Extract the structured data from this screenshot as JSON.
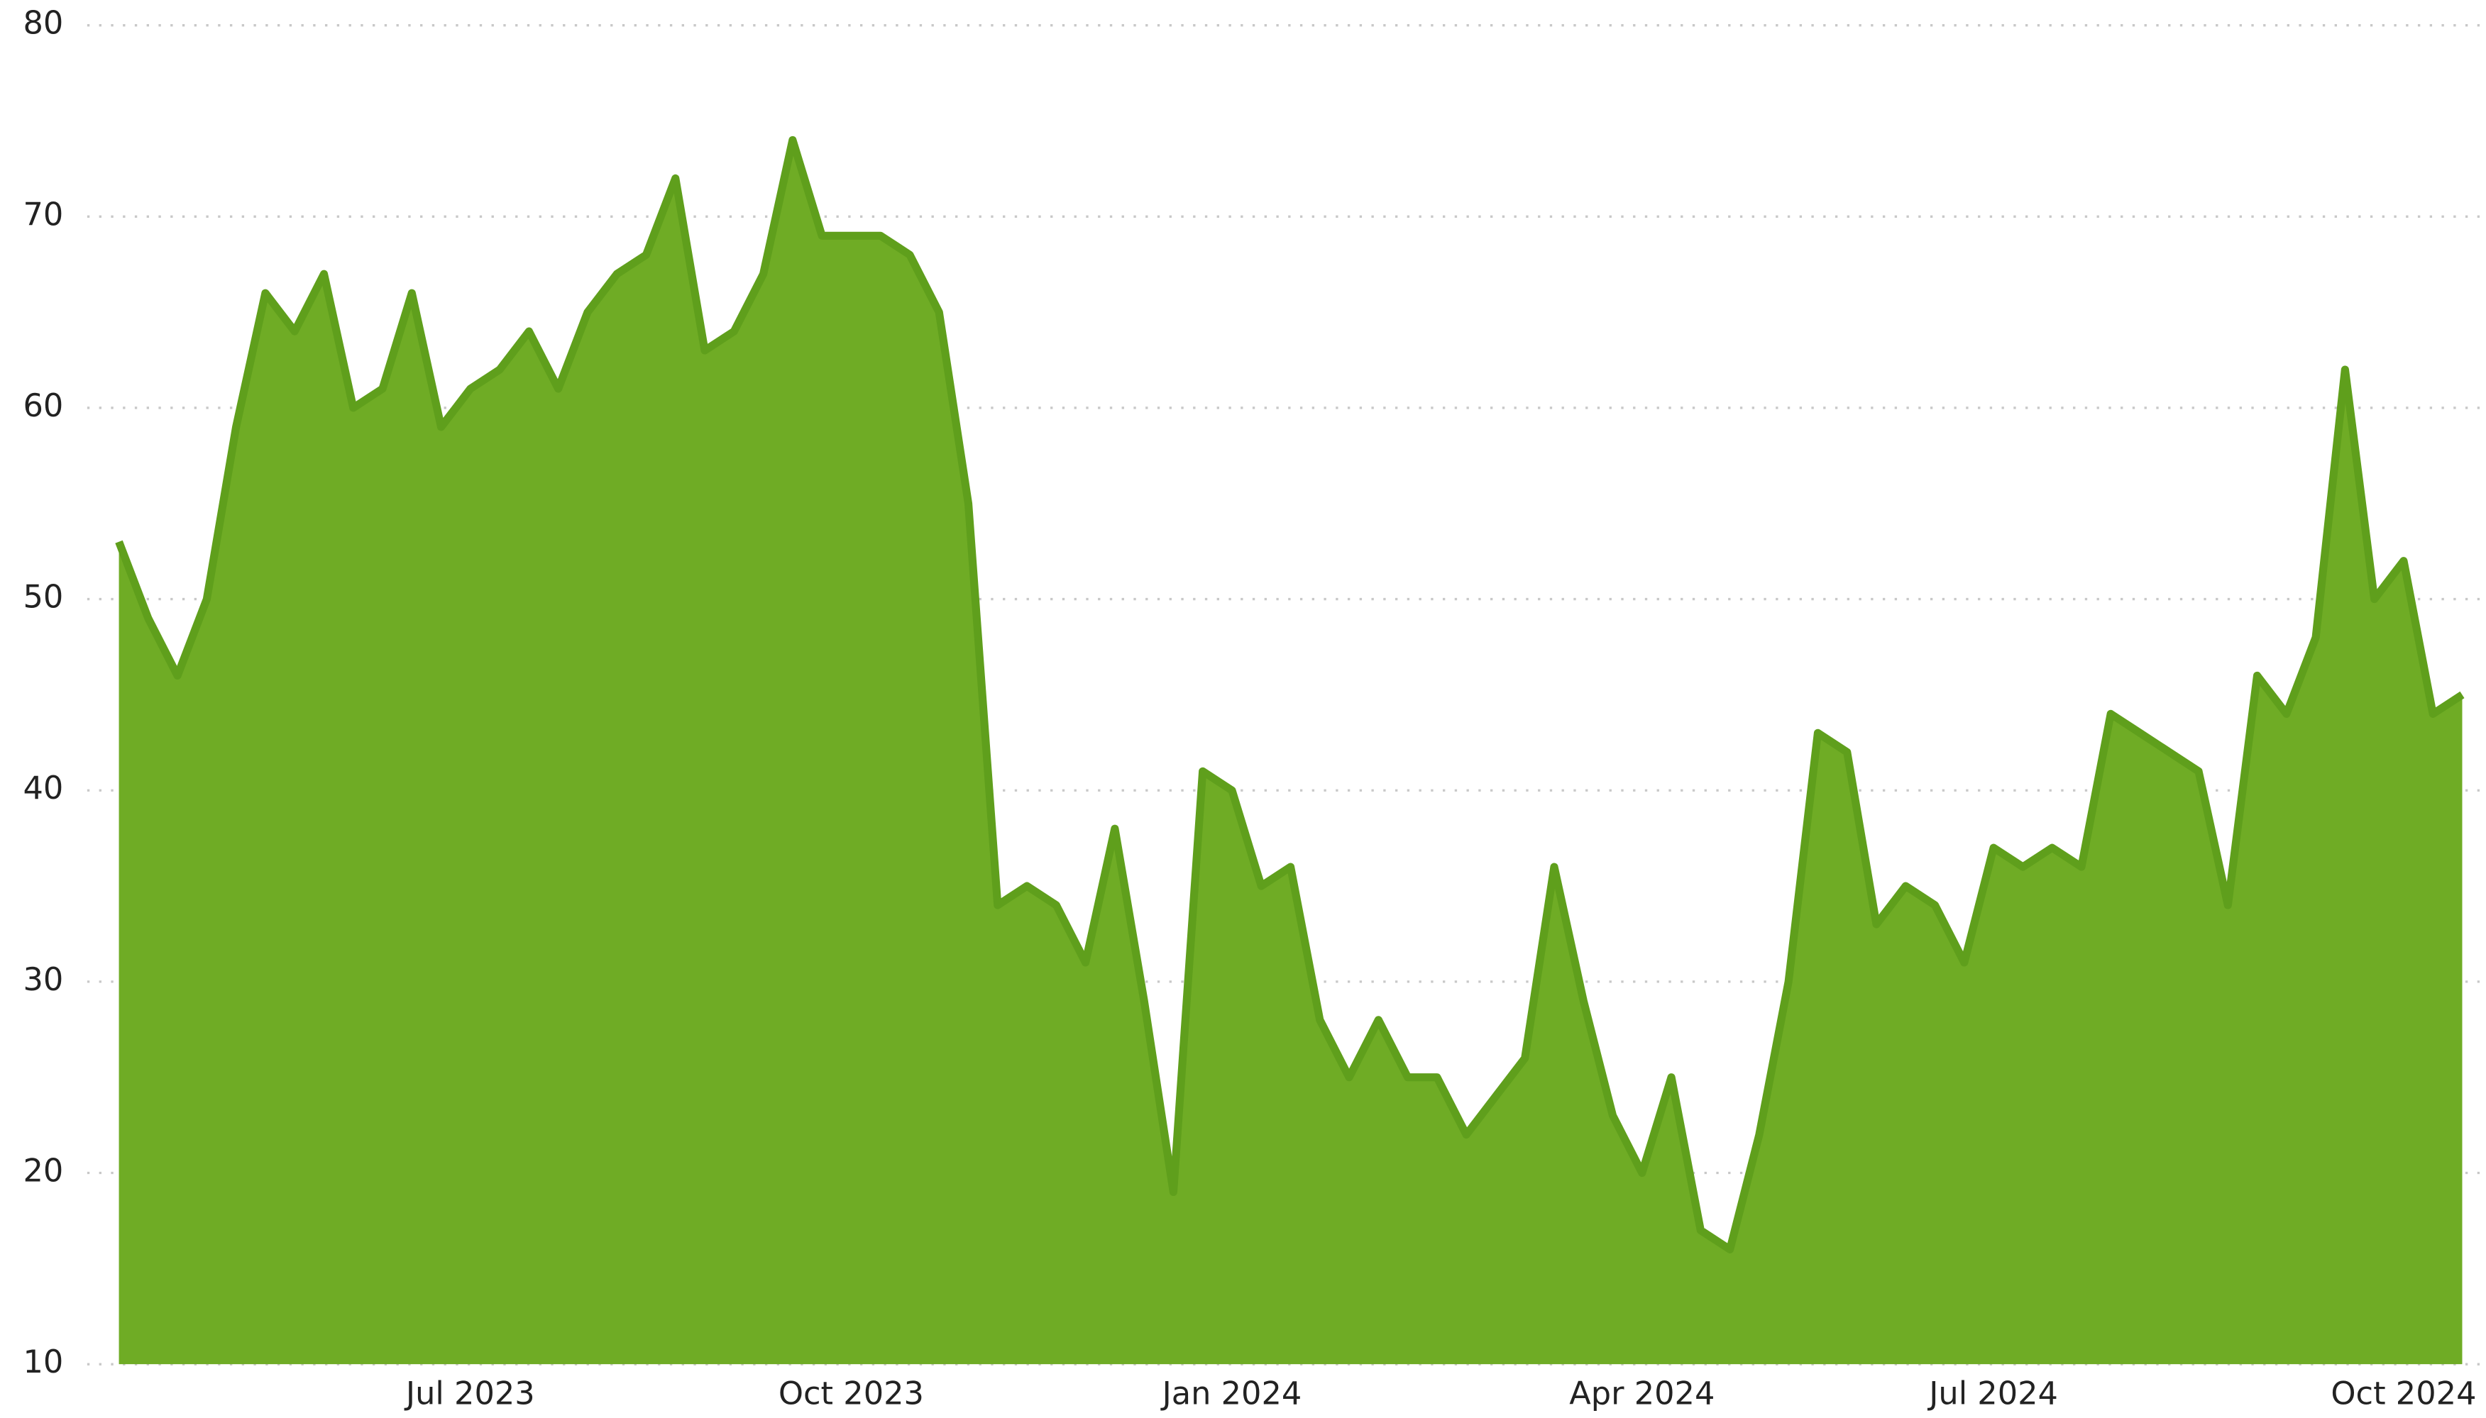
{
  "chart_data": {
    "type": "area",
    "categories": [
      null,
      null,
      null,
      null,
      null,
      null,
      null,
      null,
      null,
      null,
      null,
      null,
      "Jul 2023",
      null,
      null,
      null,
      null,
      null,
      null,
      null,
      null,
      null,
      null,
      null,
      null,
      "Oct 2023",
      null,
      null,
      null,
      null,
      null,
      null,
      null,
      null,
      null,
      null,
      null,
      null,
      "Jan 2024",
      null,
      null,
      null,
      null,
      null,
      null,
      null,
      null,
      null,
      null,
      null,
      null,
      null,
      "Apr 2024",
      null,
      null,
      null,
      null,
      null,
      null,
      null,
      null,
      null,
      null,
      null,
      "Jul 2024",
      null,
      null,
      null,
      null,
      null,
      null,
      null,
      null,
      null,
      null,
      null,
      null,
      null,
      "Oct 2024",
      null,
      null
    ],
    "values": [
      53,
      49,
      46,
      50,
      59,
      66,
      64,
      67,
      60,
      61,
      66,
      59,
      61,
      62,
      64,
      61,
      65,
      67,
      68,
      72,
      63,
      64,
      67,
      74,
      69,
      69,
      69,
      68,
      65,
      55,
      34,
      35,
      34,
      31,
      38,
      29,
      19,
      41,
      40,
      35,
      36,
      28,
      25,
      28,
      25,
      25,
      22,
      24,
      26,
      36,
      29,
      23,
      20,
      25,
      17,
      16,
      22,
      30,
      43,
      42,
      33,
      35,
      34,
      31,
      37,
      36,
      37,
      36,
      44,
      43,
      42,
      41,
      34,
      46,
      44,
      48,
      62,
      50,
      52,
      44,
      45
    ],
    "color": "#6fac25",
    "line_color": "#5f9f1c",
    "ylim": [
      10,
      80
    ],
    "yticks": [
      10,
      20,
      30,
      40,
      50,
      60,
      70,
      80
    ],
    "grid": true
  }
}
